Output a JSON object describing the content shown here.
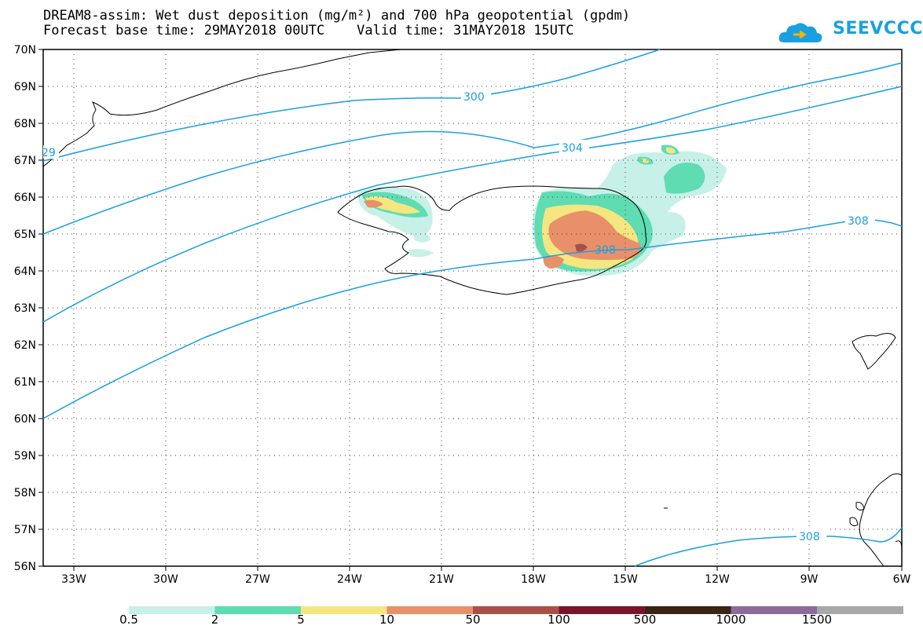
{
  "title": {
    "line1": "DREAM8-assim: Wet dust deposition (mg/m²) and 700 hPa geopotential (gpdm)",
    "line2": "Forecast base time: 29MAY2018 00UTC    Valid time: 31MAY2018 15UTC"
  },
  "logo": {
    "text": "SEEVCCC",
    "icon": "cloud-icon"
  },
  "map": {
    "lat_range": [
      56,
      70
    ],
    "lon_range": [
      -34.0,
      -6.0
    ],
    "lat_labels": [
      "56N",
      "57N",
      "58N",
      "59N",
      "60N",
      "61N",
      "62N",
      "63N",
      "64N",
      "65N",
      "66N",
      "67N",
      "68N",
      "69N",
      "70N"
    ],
    "lon_labels": [
      "33W",
      "30W",
      "27W",
      "24W",
      "21W",
      "18W",
      "15W",
      "12W",
      "9W",
      "6W"
    ],
    "contour_labels": [
      "300",
      "304",
      "308",
      "308",
      "308",
      "29"
    ]
  },
  "colorbar": {
    "colors": [
      "#c7f0e8",
      "#5fdcb2",
      "#f5e680",
      "#e8906a",
      "#a85048",
      "#7a1428",
      "#3a2414",
      "#8e6a9a",
      "#a8a8a8"
    ],
    "labels": [
      "0.5",
      "2",
      "5",
      "10",
      "50",
      "100",
      "500",
      "1000",
      "1500"
    ]
  }
}
